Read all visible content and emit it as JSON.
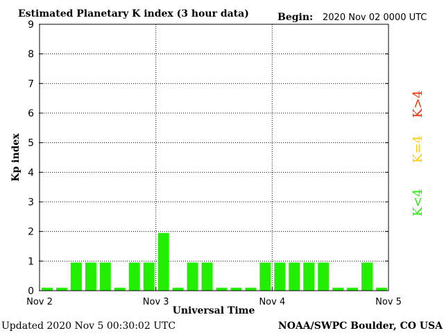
{
  "chart_data": {
    "type": "bar",
    "title": "Estimated Planetary K index (3 hour data)",
    "begin_label": "Begin:",
    "begin_value": "2020 Nov 02 0000 UTC",
    "xlabel": "Universal Time",
    "ylabel": "Kp index",
    "ylim": [
      0,
      9
    ],
    "yticks": [
      "0",
      "1",
      "2",
      "3",
      "4",
      "5",
      "6",
      "7",
      "8",
      "9"
    ],
    "xticks": [
      "Nov 2",
      "Nov 3",
      "Nov 4",
      "Nov 5"
    ],
    "grid": true,
    "values": [
      0,
      0,
      1,
      1,
      1,
      0,
      1,
      1,
      2,
      0,
      1,
      1,
      0,
      0,
      0,
      1,
      1,
      1,
      1,
      1,
      0,
      0,
      1,
      0
    ],
    "legend": [
      {
        "label": "K>4",
        "color": "#ff2a00"
      },
      {
        "label": "K=4",
        "color": "#ffcc00"
      },
      {
        "label": "K<4",
        "color": "#22ee00"
      }
    ],
    "bar_color": "#22ee00",
    "footer_left": "Updated 2020 Nov  5 00:30:02 UTC",
    "footer_right": "NOAA/SWPC Boulder, CO USA"
  }
}
